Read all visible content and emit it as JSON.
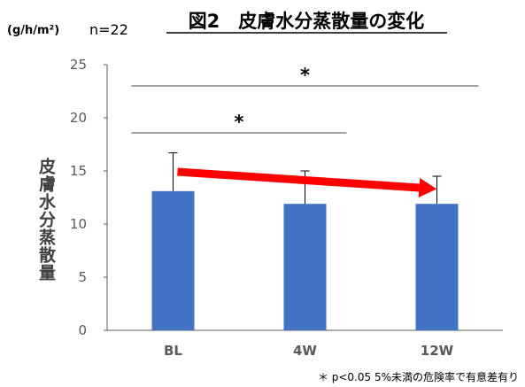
{
  "chart_data": {
    "type": "bar",
    "title": "図2　皮膚水分蒸散量の変化",
    "unit_label": "(g/h/m²)",
    "n_label": "n=22",
    "ylabel": "皮膚水分蒸散量",
    "xlabel": "",
    "categories": [
      "BL",
      "4W",
      "12W"
    ],
    "series": [
      {
        "values": [
          13.1,
          11.9,
          11.9
        ],
        "error_upper": [
          16.7,
          15.0,
          14.5
        ],
        "color": "#4472C4"
      }
    ],
    "ylim": [
      0,
      25
    ],
    "yticks": [
      0,
      5,
      10,
      15,
      20,
      25
    ],
    "grid": false,
    "legend": "none",
    "significance": [
      {
        "from": "BL",
        "to": "4W",
        "label": "*"
      },
      {
        "from": "BL",
        "to": "12W",
        "label": "*"
      }
    ],
    "trend_arrow": {
      "from": "BL",
      "to": "12W",
      "color": "#FF0000"
    },
    "footnote": "＊ p<0.05 5%未満の危険率で有意差有り"
  }
}
